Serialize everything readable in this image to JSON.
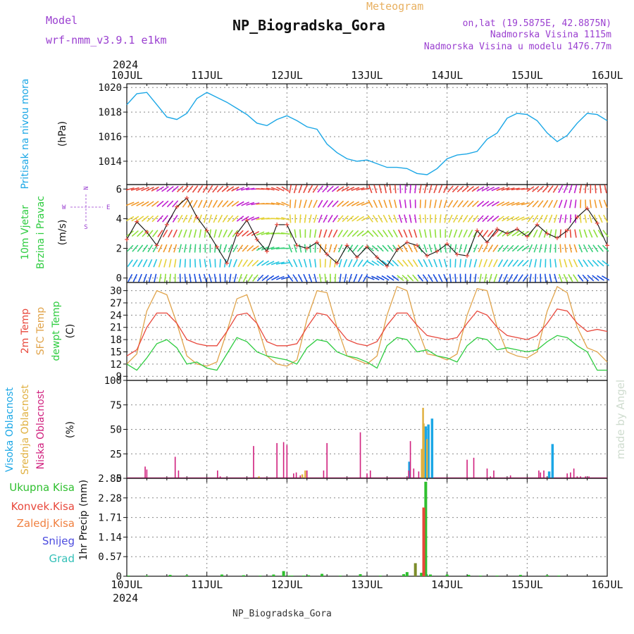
{
  "header": {
    "model_label": "Model",
    "model_name": "wrf-nmm_v3.9.1 e1km",
    "meteogram_label": "Meteogram",
    "station": "NP_Biogradska_Gora",
    "lonlat": "on,lat (19.5875E, 42.8875N)",
    "elevation": "Nadmorska Visina 1115m",
    "model_elevation": "Nadmorska Visina u modelu 1476.77m",
    "footer_station": "NP_Biogradska_Gora",
    "watermark": "made by Angel"
  },
  "colors": {
    "pressure": "#1ba7e6",
    "temp2m": "#e8483c",
    "sfc": "#e0a34a",
    "dewpt": "#2ecc40",
    "high": "#1ba7e6",
    "mid": "#e0b040",
    "low": "#d0207e",
    "total": "#2fbf2f",
    "conv": "#e8483c",
    "frz": "#f08040",
    "snow": "#4b4bdf",
    "grad": "#34c0b8",
    "purple": "#9a3fd0",
    "wind_obs": "#e8483c"
  },
  "time_axis": {
    "year": "2024",
    "labels": [
      "10JUL",
      "11JUL",
      "12JUL",
      "13JUL",
      "14JUL",
      "15JUL",
      "16JUL"
    ]
  },
  "chart_data": [
    {
      "type": "line",
      "name": "pressure",
      "ylabel_parts": [
        "Pritisak na nivou mora",
        "(hPa)"
      ],
      "yticks": [
        1014,
        1016,
        1018,
        1020
      ],
      "ylim": [
        1012.1,
        1020.3
      ],
      "x_unit": "hours since 10JUL 00h",
      "x": [
        0,
        3,
        6,
        9,
        12,
        15,
        18,
        21,
        24,
        27,
        30,
        33,
        36,
        39,
        42,
        45,
        48,
        51,
        54,
        57,
        60,
        63,
        66,
        69,
        72,
        75,
        78,
        81,
        84,
        87,
        90,
        93,
        96,
        99,
        102,
        105,
        108,
        111,
        114,
        117,
        120,
        123,
        126,
        129,
        132,
        135,
        138,
        141,
        144
      ],
      "values": [
        1018.6,
        1019.5,
        1019.6,
        1018.6,
        1017.6,
        1017.4,
        1017.9,
        1019.1,
        1019.6,
        1019.2,
        1018.8,
        1018.3,
        1017.8,
        1017.1,
        1016.9,
        1017.4,
        1017.7,
        1017.3,
        1016.8,
        1016.6,
        1015.4,
        1014.7,
        1014.2,
        1014.0,
        1014.1,
        1013.8,
        1013.5,
        1013.5,
        1013.4,
        1013.0,
        1012.9,
        1013.4,
        1014.2,
        1014.5,
        1014.6,
        1014.8,
        1015.8,
        1016.3,
        1017.5,
        1017.9,
        1017.8,
        1017.3,
        1016.3,
        1015.6,
        1016.1,
        1017.1,
        1017.9,
        1017.8,
        1017.3
      ]
    },
    {
      "type": "line",
      "name": "wind",
      "ylabel_parts": [
        "10m Vjetar",
        "Brzina i Pravac",
        "(m/s)"
      ],
      "compass": [
        "N",
        "S",
        "W",
        "E"
      ],
      "yticks": [
        0,
        2,
        4,
        6
      ],
      "ylim": [
        -0.3,
        6.3
      ],
      "x": [
        0,
        3,
        6,
        9,
        12,
        15,
        18,
        21,
        24,
        27,
        30,
        33,
        36,
        39,
        42,
        45,
        48,
        51,
        54,
        57,
        60,
        63,
        66,
        69,
        72,
        75,
        78,
        81,
        84,
        87,
        90,
        93,
        96,
        99,
        102,
        105,
        108,
        111,
        114,
        117,
        120,
        123,
        126,
        129,
        132,
        135,
        138,
        141,
        144
      ],
      "values": [
        2.6,
        3.8,
        3.1,
        2.2,
        3.6,
        4.8,
        5.4,
        4.1,
        3.2,
        2.1,
        1.0,
        3.0,
        3.9,
        2.6,
        1.8,
        3.6,
        3.6,
        2.2,
        2.0,
        2.4,
        1.6,
        1.0,
        2.2,
        1.4,
        2.1,
        1.4,
        0.8,
        1.9,
        2.4,
        2.2,
        1.5,
        1.8,
        2.3,
        1.6,
        1.5,
        3.2,
        2.4,
        3.3,
        3.0,
        3.3,
        2.8,
        3.6,
        3.0,
        2.7,
        3.2,
        4.1,
        4.7,
        3.7,
        2.2
      ]
    },
    {
      "type": "line",
      "name": "temperature",
      "ylabel_parts": [
        "2m Temp",
        "SFC Temp",
        "dewpt Temp",
        "(C)"
      ],
      "yticks": [
        9,
        12,
        15,
        18,
        21,
        24,
        27,
        30
      ],
      "ylim": [
        8,
        32
      ],
      "x": [
        0,
        3,
        6,
        9,
        12,
        15,
        18,
        21,
        24,
        27,
        30,
        33,
        36,
        39,
        42,
        45,
        48,
        51,
        54,
        57,
        60,
        63,
        66,
        69,
        72,
        75,
        78,
        81,
        84,
        87,
        90,
        93,
        96,
        99,
        102,
        105,
        108,
        111,
        114,
        117,
        120,
        123,
        126,
        129,
        132,
        135,
        138,
        141,
        144
      ],
      "series": [
        {
          "name": "2m Temp",
          "values": [
            14.0,
            15.5,
            21.0,
            24.5,
            24.5,
            22.0,
            18.0,
            17.0,
            16.5,
            16.5,
            20.0,
            24.0,
            24.5,
            22.0,
            17.5,
            16.5,
            16.5,
            17.0,
            21.0,
            24.5,
            24.0,
            21.0,
            18.0,
            17.0,
            16.5,
            17.5,
            21.5,
            24.5,
            24.5,
            21.5,
            19.0,
            18.5,
            18.0,
            18.5,
            22.0,
            25.0,
            24.0,
            21.0,
            19.0,
            18.5,
            18.0,
            19.0,
            22.0,
            25.5,
            25.0,
            22.0,
            20.0,
            20.5,
            20.0
          ]
        },
        {
          "name": "SFC Temp",
          "values": [
            12.0,
            14.5,
            25.0,
            30.0,
            29.0,
            22.0,
            14.0,
            12.0,
            11.5,
            12.5,
            20.0,
            28.0,
            29.0,
            22.0,
            14.0,
            12.0,
            11.5,
            13.0,
            23.0,
            30.0,
            29.5,
            21.0,
            14.0,
            13.0,
            12.0,
            14.0,
            24.0,
            31.0,
            30.0,
            21.0,
            14.5,
            14.0,
            13.0,
            14.5,
            24.0,
            30.5,
            30.0,
            21.0,
            15.0,
            14.0,
            13.5,
            15.0,
            25.0,
            31.0,
            29.5,
            21.0,
            16.0,
            15.0,
            12.5
          ]
        },
        {
          "name": "dewpt Temp",
          "values": [
            12.0,
            10.5,
            13.5,
            17.0,
            18.0,
            16.0,
            12.0,
            12.5,
            11.0,
            10.5,
            14.5,
            18.5,
            17.5,
            15.0,
            14.0,
            13.5,
            13.0,
            12.0,
            16.0,
            18.0,
            17.5,
            15.0,
            14.0,
            13.5,
            12.5,
            11.0,
            16.5,
            18.5,
            18.0,
            15.0,
            15.5,
            14.0,
            13.5,
            12.5,
            16.5,
            18.5,
            18.0,
            15.5,
            16.0,
            15.5,
            15.0,
            15.5,
            17.5,
            19.0,
            18.5,
            16.5,
            15.0,
            10.5,
            10.5
          ]
        }
      ]
    },
    {
      "type": "bar",
      "name": "cloud",
      "ylabel_parts": [
        "Visoka Oblacnost",
        "Srednja Oblacnost",
        "Niska Oblacnost",
        "(%)"
      ],
      "yticks": [
        0,
        25,
        50,
        75,
        100
      ],
      "ylim": [
        0,
        100
      ],
      "series": [
        {
          "name": "Visoka Oblacnost",
          "x": [
            84.7,
            88.6,
            89.6,
            90.4,
            91.5,
            126.6,
            127.6
          ],
          "values": [
            17,
            16,
            53,
            55,
            61,
            7,
            35
          ]
        },
        {
          "name": "Srednja Oblacnost",
          "x": [
            39.6,
            52.6,
            53.5,
            88.4,
            88.8,
            89.0,
            90.0
          ],
          "values": [
            2,
            4,
            8,
            30,
            72,
            56,
            40
          ]
        },
        {
          "name": "Niska Oblacnost",
          "x": [
            5.5,
            6.0,
            14.5,
            15.5,
            27.2,
            28.0,
            38.0,
            45.0,
            47.0,
            48.0,
            50.0,
            50.8,
            52.0,
            54.0,
            59.0,
            60.0,
            70.0,
            72.0,
            73.0,
            84.5,
            85.0,
            86.0,
            87.5,
            102.0,
            104.0,
            108.0,
            109.0,
            110.0,
            115.0,
            123.5,
            124.0,
            125.0,
            132.0,
            133.0,
            134.0,
            135.0,
            136.0,
            137.5,
            138.5
          ],
          "values": [
            12,
            9,
            22,
            8,
            8,
            2,
            33,
            36,
            37,
            34,
            5,
            6,
            3,
            8,
            8,
            36,
            47,
            5,
            8,
            8,
            38,
            10,
            7,
            19,
            21,
            10,
            2,
            8,
            3,
            8,
            6,
            8,
            5,
            6,
            10,
            2,
            2,
            2,
            2
          ]
        }
      ]
    },
    {
      "type": "bar",
      "name": "precipitation",
      "ylabel_parts": [
        "1hr Precip",
        "(mm)"
      ],
      "legend": [
        "Ukupna Kisa",
        "Konvek.Kisa",
        "Zaledj.Kisa",
        "Snijeg",
        "Grad"
      ],
      "yticks": [
        "0",
        "0.57",
        "1.14",
        "1.71",
        "2.28",
        "2.85"
      ],
      "ylim": [
        0,
        2.85
      ],
      "series": [
        {
          "name": "Ukupna Kisa",
          "x": [
            0.5,
            6.0,
            13.0,
            18.0,
            28.5,
            35.0,
            40.0,
            44.0,
            47.0,
            48.5,
            49.5,
            53.0,
            54.5,
            58.5,
            64.0,
            70.0,
            76.0,
            83.0,
            84.0,
            86.5,
            88.3,
            89.0,
            89.6,
            91.0,
            96.0,
            102.5,
            106.0,
            111.0,
            118.0,
            126.0,
            129.5
          ],
          "values": [
            0.02,
            0.02,
            0.04,
            0.03,
            0.05,
            0.03,
            0.02,
            0.05,
            0.15,
            0.02,
            0.02,
            0.02,
            0.03,
            0.07,
            0.02,
            0.06,
            0.02,
            0.06,
            0.12,
            0.38,
            0.1,
            0.35,
            2.75,
            0.05,
            0.05,
            0.04,
            0.02,
            0.02,
            0.04,
            0.03,
            0.02
          ]
        },
        {
          "name": "Konvek.Kisa",
          "x": [
            89.0
          ],
          "values": [
            2.0
          ]
        },
        {
          "name": "Zaledj.Kisa",
          "x": [],
          "values": []
        },
        {
          "name": "Snijeg",
          "x": [],
          "values": []
        },
        {
          "name": "Grad",
          "x": [],
          "values": []
        }
      ]
    }
  ]
}
